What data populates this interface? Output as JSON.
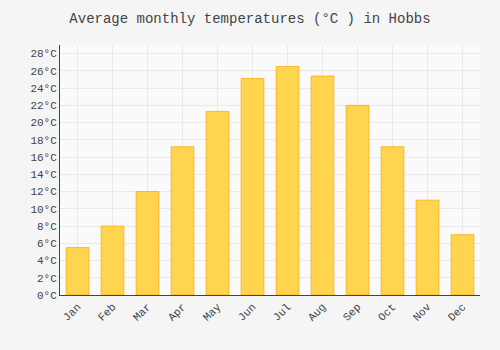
{
  "chart_data": {
    "type": "bar",
    "title": "Average monthly temperatures (°C ) in Hobbs",
    "categories": [
      "Jan",
      "Feb",
      "Mar",
      "Apr",
      "May",
      "Jun",
      "Jul",
      "Aug",
      "Sep",
      "Oct",
      "Nov",
      "Dec"
    ],
    "values": [
      5.5,
      8.0,
      12.0,
      17.2,
      21.3,
      25.1,
      26.5,
      25.4,
      22.0,
      17.2,
      11.0,
      7.0
    ],
    "color": "#FFD54F",
    "ylim": [
      0,
      29
    ],
    "yticks": [
      {
        "value": 0,
        "label": "0°C"
      },
      {
        "value": 2,
        "label": "2°C"
      },
      {
        "value": 4,
        "label": "4°C"
      },
      {
        "value": 6,
        "label": "6°C"
      },
      {
        "value": 8,
        "label": "8°C"
      },
      {
        "value": 10,
        "label": "10°C"
      },
      {
        "value": 12,
        "label": "12°C"
      },
      {
        "value": 14,
        "label": "14°C"
      },
      {
        "value": 16,
        "label": "16°C"
      },
      {
        "value": 18,
        "label": "18°C"
      },
      {
        "value": 20,
        "label": "20°C"
      },
      {
        "value": 22,
        "label": "22°C"
      },
      {
        "value": 24,
        "label": "24°C"
      },
      {
        "value": 26,
        "label": "26°C"
      },
      {
        "value": 28,
        "label": "28°C"
      }
    ],
    "grid": true
  }
}
